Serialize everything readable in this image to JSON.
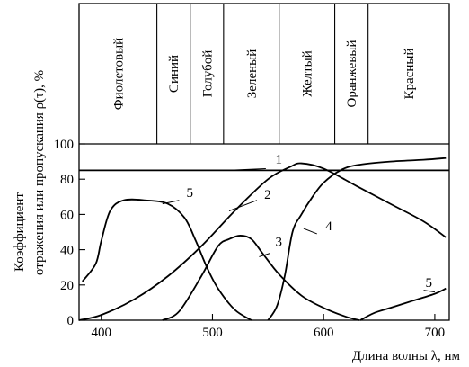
{
  "chart_data": {
    "type": "line",
    "ylabel_line1": "Коэффициент",
    "ylabel_line2": "отражения или пропускания ρ(τ), %",
    "xlabel": "Длина волны λ, нм",
    "xlim": [
      380,
      713
    ],
    "ylim": [
      0,
      100
    ],
    "xticks": [
      400,
      500,
      600,
      700
    ],
    "yticks": [
      0,
      20,
      40,
      60,
      80,
      100
    ],
    "bands": [
      {
        "label": "Фиолетовый",
        "from": 380,
        "to": 450
      },
      {
        "label": "Синий",
        "from": 450,
        "to": 480
      },
      {
        "label": "Голубой",
        "from": 480,
        "to": 510
      },
      {
        "label": "Зеленый",
        "from": 510,
        "to": 560
      },
      {
        "label": "Желтый",
        "from": 560,
        "to": 610
      },
      {
        "label": "Оранжевый",
        "from": 610,
        "to": 640
      },
      {
        "label": "Красный",
        "from": 640,
        "to": 713
      }
    ],
    "series": [
      {
        "name": "1",
        "x": [
          380,
          713
        ],
        "y": [
          85,
          85
        ]
      },
      {
        "name": "2",
        "x": [
          380,
          400,
          430,
          460,
          490,
          520,
          550,
          570,
          580,
          600,
          630,
          660,
          690,
          710
        ],
        "y": [
          0,
          3,
          12,
          25,
          42,
          62,
          80,
          87,
          89,
          86,
          76,
          66,
          56,
          47
        ]
      },
      {
        "name": "3",
        "x": [
          455,
          470,
          490,
          505,
          515,
          525,
          535,
          545,
          560,
          580,
          600,
          620,
          632
        ],
        "y": [
          0,
          5,
          25,
          42,
          46,
          48,
          46,
          38,
          26,
          14,
          7,
          2,
          0
        ]
      },
      {
        "name": "4",
        "x": [
          550,
          558,
          565,
          572,
          580,
          590,
          600,
          615,
          630,
          660,
          690,
          710
        ],
        "y": [
          0,
          8,
          25,
          50,
          60,
          70,
          78,
          85,
          88,
          90,
          91,
          92
        ]
      },
      {
        "name": "5",
        "x": [
          383,
          395,
          400,
          408,
          420,
          440,
          460,
          475,
          485,
          495,
          505,
          520,
          535
        ],
        "y": [
          22,
          32,
          45,
          62,
          68,
          68,
          66,
          58,
          45,
          30,
          18,
          6,
          0
        ]
      },
      {
        "name": "5",
        "x": [
          633,
          645,
          660,
          680,
          700,
          710
        ],
        "y": [
          0,
          4,
          7,
          11,
          15,
          18
        ]
      }
    ],
    "labels": [
      {
        "text": "1",
        "x": 555,
        "y": 90
      },
      {
        "text": "2",
        "x": 545,
        "y": 70
      },
      {
        "text": "3",
        "x": 555,
        "y": 43
      },
      {
        "text": "4",
        "x": 600,
        "y": 52
      },
      {
        "text": "5",
        "x": 475,
        "y": 71
      },
      {
        "text": "5",
        "x": 690,
        "y": 20
      }
    ]
  }
}
